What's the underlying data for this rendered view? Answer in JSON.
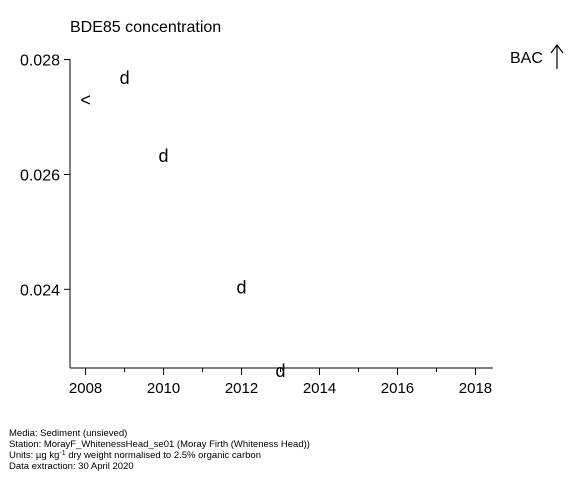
{
  "chart_data": {
    "type": "scatter",
    "title": "BDE85 concentration",
    "x_ticks": [
      2008,
      2010,
      2012,
      2014,
      2016,
      2018
    ],
    "y_ticks": [
      0.024,
      0.026,
      0.028
    ],
    "y_tick_labels": [
      "0.024",
      "0.026",
      "0.028"
    ],
    "xlim": [
      2007.6,
      2018.45
    ],
    "ylim": [
      0.02263,
      0.02801
    ],
    "points": [
      {
        "x": 2008,
        "y": 0.0273,
        "label": "<"
      },
      {
        "x": 2009,
        "y": 0.02768,
        "label": "d"
      },
      {
        "x": 2010,
        "y": 0.02632,
        "label": "d"
      },
      {
        "x": 2012,
        "y": 0.02403,
        "label": "d"
      },
      {
        "x": 2013,
        "y": 0.02258,
        "label": "d"
      }
    ],
    "bac_label": "BAC",
    "bac_direction": "up-arrow",
    "grid": false
  },
  "footer": {
    "media": "Media: Sediment (unsieved)",
    "station": "Station: MorayF_WhitenessHead_se01 (Moray Firth (Whiteness Head))",
    "units_prefix": "Units:  µg kg",
    "units_sup": "-1",
    "units_suffix": " dry weight normalised to 2.5% organic carbon",
    "extraction": "Data extraction: 30 April 2020"
  }
}
